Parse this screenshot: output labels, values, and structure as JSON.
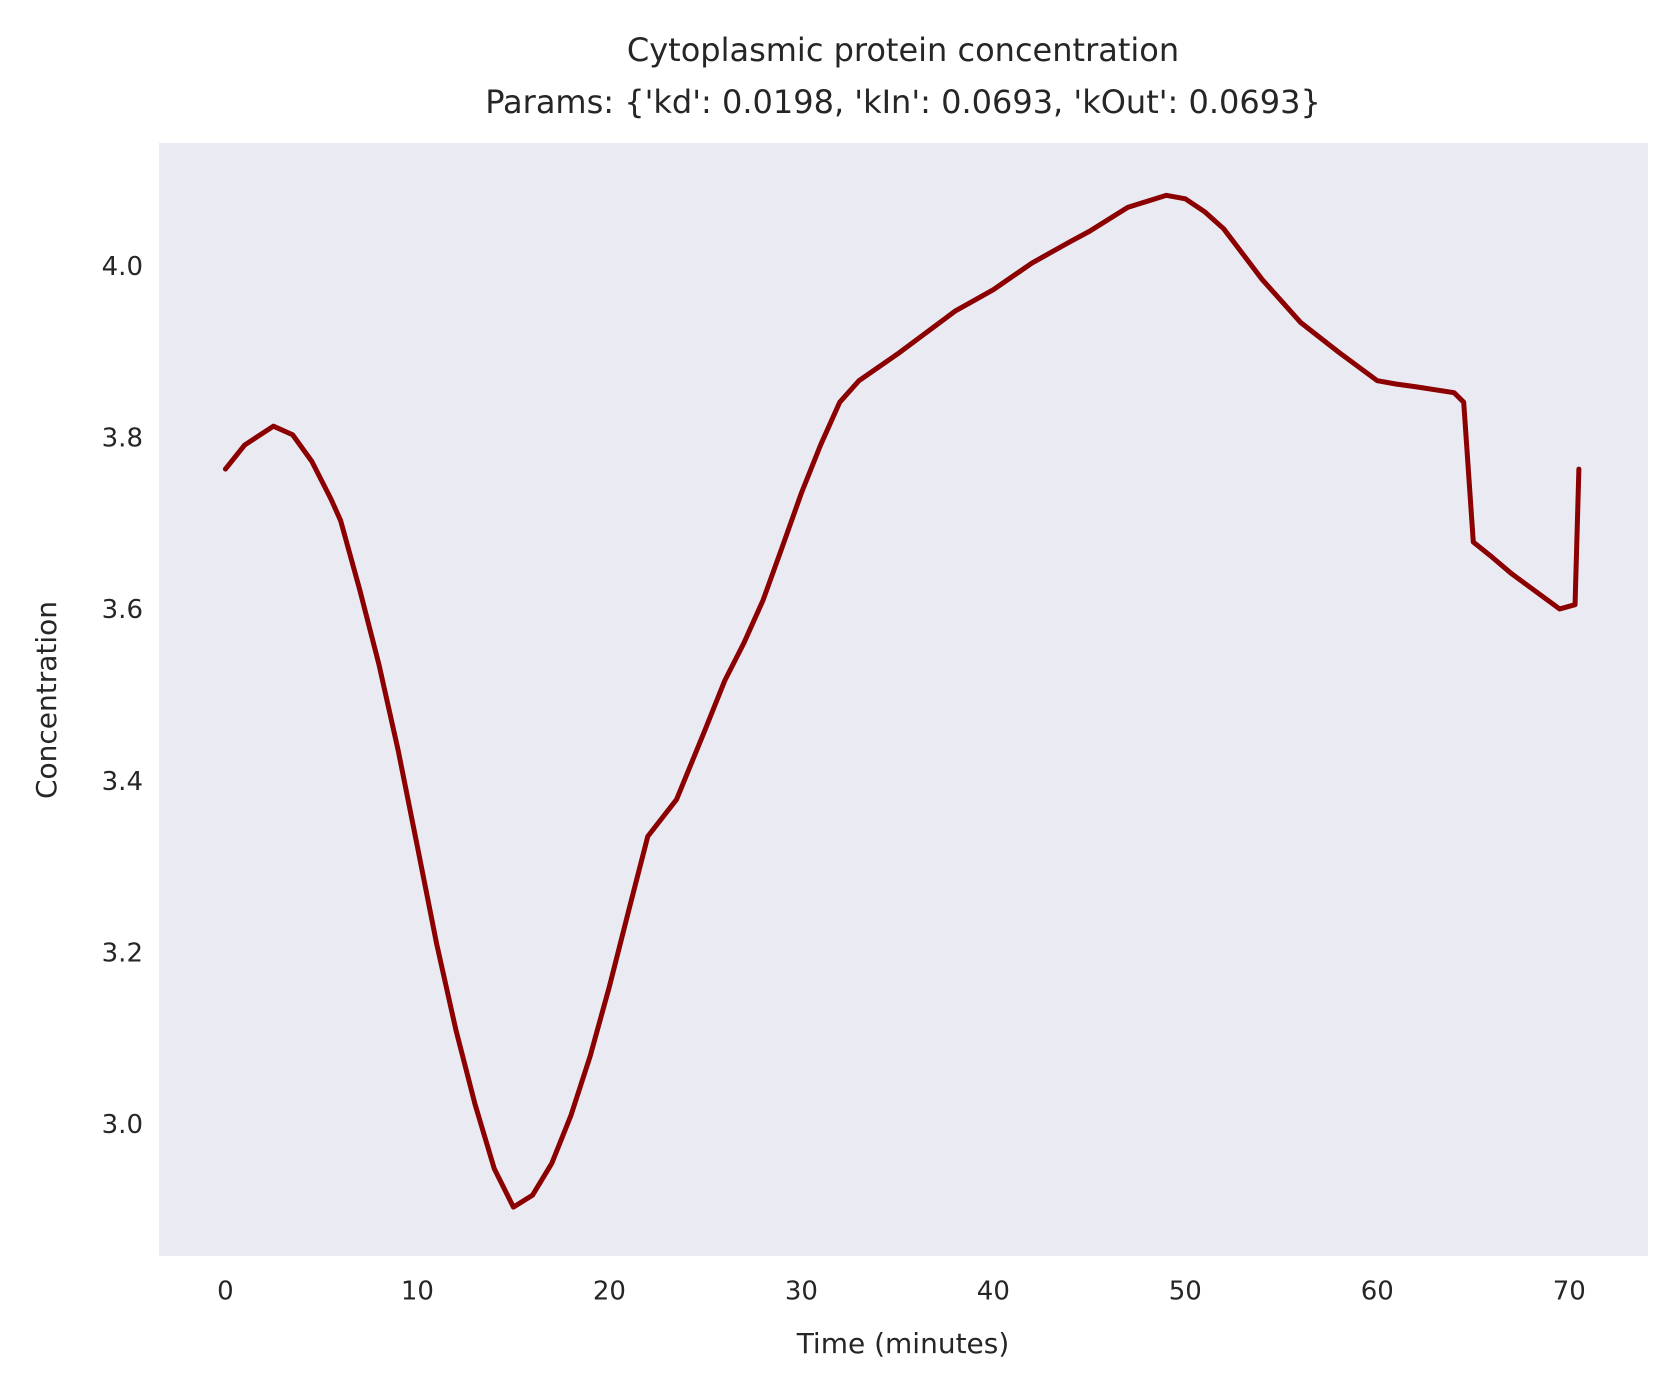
{
  "chart_data": {
    "type": "line",
    "title": "Cytoplasmic protein concentration",
    "subtitle": "Params: {'kd': 0.0198, 'kIn': 0.0693, 'kOut': 0.0693}",
    "xlabel": "Time (minutes)",
    "ylabel": "Concentration",
    "x": [
      0,
      1,
      2.5,
      3.5,
      4.5,
      5.5,
      6,
      7,
      8,
      9,
      10,
      11,
      12,
      13,
      14,
      15,
      16,
      17,
      18,
      19,
      20,
      21,
      22,
      23.5,
      25,
      26,
      27,
      28,
      29,
      30,
      31,
      32,
      33,
      35,
      38,
      40,
      42,
      44,
      45,
      47,
      49,
      50,
      51,
      52,
      54,
      56,
      58,
      60,
      61,
      62,
      64,
      64.5,
      65,
      66,
      67,
      69.5,
      70.3,
      70.5
    ],
    "series": [
      {
        "name": "Concentration",
        "color": "#8b0000",
        "values": [
          3.765,
          3.793,
          3.815,
          3.805,
          3.774,
          3.73,
          3.705,
          3.624,
          3.537,
          3.437,
          3.325,
          3.212,
          3.112,
          3.025,
          2.95,
          2.905,
          2.919,
          2.956,
          3.012,
          3.081,
          3.162,
          3.25,
          3.337,
          3.38,
          3.462,
          3.518,
          3.562,
          3.612,
          3.674,
          3.737,
          3.793,
          3.843,
          3.868,
          3.899,
          3.949,
          3.974,
          4.005,
          4.03,
          4.042,
          4.07,
          4.084,
          4.08,
          4.065,
          4.045,
          3.986,
          3.936,
          3.901,
          3.868,
          3.864,
          3.861,
          3.854,
          3.843,
          3.68,
          3.662,
          3.643,
          3.602,
          3.607,
          3.765
        ]
      }
    ],
    "xlim": [
      -3.46,
      74.1
    ],
    "ylim": [
      2.848,
      4.145
    ],
    "xticks": [
      0,
      10,
      20,
      30,
      40,
      50,
      60,
      70
    ],
    "yticks": [
      {
        "value": 3.0,
        "label": "3.0"
      },
      {
        "value": 3.2,
        "label": "3.2"
      },
      {
        "value": 3.4,
        "label": "3.4"
      },
      {
        "value": 3.6,
        "label": "3.6"
      },
      {
        "value": 3.8,
        "label": "3.8"
      },
      {
        "value": 4.0,
        "label": "4.0"
      }
    ],
    "background": "#eaeaf2",
    "grid": false
  }
}
